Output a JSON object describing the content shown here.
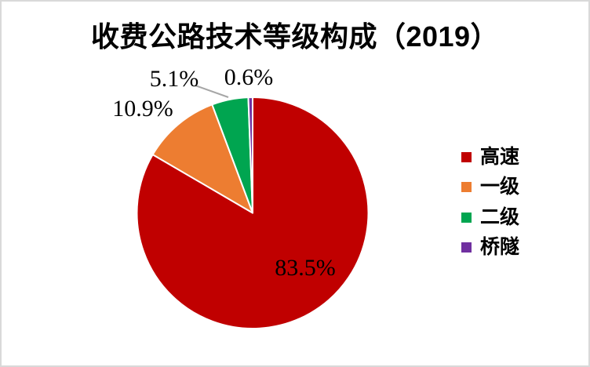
{
  "chart": {
    "title": "收费公路技术等级构成（2019）"
  },
  "chart_data": {
    "type": "pie",
    "title": "收费公路技术等级构成（2019）",
    "categories": [
      "高速",
      "一级",
      "二级",
      "桥隧"
    ],
    "values": [
      83.5,
      10.9,
      5.1,
      0.6
    ],
    "display_labels": [
      "83.5%",
      "10.9%",
      "5.1%",
      "0.6%"
    ],
    "colors": [
      "#C00000",
      "#ED7D31",
      "#00A550",
      "#7030A0"
    ],
    "slice_ids": [
      "expressway",
      "class-1",
      "class-2",
      "bridge-tunnel"
    ],
    "start_angle_deg": 0,
    "direction": "clockwise",
    "legend_position": "right",
    "slice_border_color": "#FFFFFF",
    "leader_line_color": "#A6A6A6",
    "background_color": "#FFFFFF",
    "title_color": "#000000",
    "label_color": "#000000"
  },
  "legend": {
    "items": [
      {
        "label": "高速",
        "color": "#C00000"
      },
      {
        "label": "一级",
        "color": "#ED7D31"
      },
      {
        "label": "二级",
        "color": "#00A550"
      },
      {
        "label": "桥隧",
        "color": "#7030A0"
      }
    ]
  }
}
